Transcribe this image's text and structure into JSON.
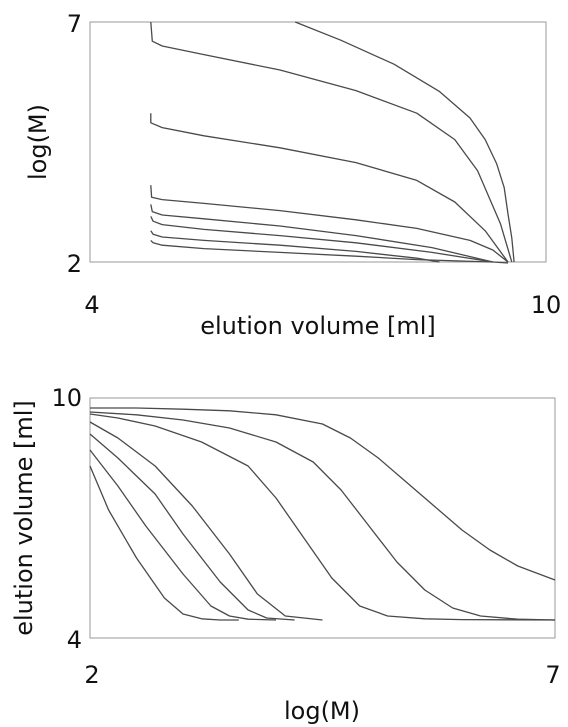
{
  "chart_data": [
    {
      "type": "line",
      "xlabel": "elution volume [ml]",
      "ylabel": "log(M)",
      "xlim": [
        4,
        10
      ],
      "ylim": [
        2,
        7
      ],
      "xticks": [
        "4",
        "10"
      ],
      "yticks": [
        "2",
        "7"
      ],
      "grid": false,
      "line_color": "#4a4a4a",
      "series": [
        {
          "x": [
            4.8,
            4.83,
            4.95,
            5.5,
            6.5,
            7.5,
            8.3,
            9.3,
            9.5
          ],
          "y": [
            2.45,
            2.4,
            2.35,
            2.28,
            2.2,
            2.12,
            2.05,
            2.0,
            1.98
          ]
        },
        {
          "x": [
            4.8,
            4.83,
            4.95,
            5.5,
            6.5,
            7.5,
            8.3,
            8.6
          ],
          "y": [
            2.65,
            2.58,
            2.52,
            2.45,
            2.35,
            2.22,
            2.08,
            2.0
          ]
        },
        {
          "x": [
            4.8,
            4.83,
            4.95,
            5.5,
            6.5,
            7.5,
            8.5,
            9.3
          ],
          "y": [
            2.95,
            2.85,
            2.78,
            2.68,
            2.55,
            2.4,
            2.2,
            2.0
          ]
        },
        {
          "x": [
            4.8,
            4.82,
            4.95,
            5.5,
            6.5,
            7.5,
            8.5,
            9.3
          ],
          "y": [
            3.2,
            3.05,
            2.98,
            2.9,
            2.75,
            2.55,
            2.3,
            2.0
          ]
        },
        {
          "x": [
            4.8,
            4.81,
            4.95,
            5.5,
            6.5,
            7.5,
            8.3,
            9.0,
            9.3,
            9.5
          ],
          "y": [
            3.6,
            3.35,
            3.3,
            3.22,
            3.07,
            2.88,
            2.7,
            2.45,
            2.25,
            2.0
          ]
        },
        {
          "x": [
            4.8,
            4.8,
            4.95,
            5.5,
            6.5,
            7.5,
            8.3,
            8.8,
            9.2,
            9.5
          ],
          "y": [
            5.1,
            4.9,
            4.8,
            4.63,
            4.38,
            4.07,
            3.7,
            3.25,
            2.65,
            2.0
          ]
        },
        {
          "x": [
            4.8,
            4.82,
            4.95,
            5.5,
            6.5,
            7.5,
            8.3,
            8.8,
            9.1,
            9.4,
            9.55
          ],
          "y": [
            7.0,
            6.6,
            6.5,
            6.32,
            6.0,
            5.57,
            5.1,
            4.55,
            3.9,
            2.8,
            2.0
          ]
        },
        {
          "x": [
            6.7,
            7.3,
            8.0,
            8.6,
            9.0,
            9.2,
            9.35,
            9.45,
            9.5,
            9.55,
            9.58
          ],
          "y": [
            7.0,
            6.62,
            6.12,
            5.55,
            5.0,
            4.55,
            4.05,
            3.55,
            3.0,
            2.5,
            2.0
          ]
        }
      ]
    },
    {
      "type": "line",
      "xlabel": "log(M)",
      "ylabel": "elution volume [ml]",
      "xlim": [
        2,
        7
      ],
      "ylim": [
        4,
        10
      ],
      "xticks": [
        "2",
        "7"
      ],
      "yticks": [
        "4",
        "10"
      ],
      "grid": false,
      "line_color": "#4a4a4a",
      "series": [
        {
          "x": [
            2.0,
            2.2,
            2.5,
            2.8,
            3.0,
            3.2,
            3.4,
            3.6
          ],
          "y": [
            8.3,
            7.2,
            6.0,
            5.0,
            4.6,
            4.48,
            4.45,
            4.45
          ]
        },
        {
          "x": [
            2.0,
            2.3,
            2.6,
            3.0,
            3.3,
            3.5,
            3.7,
            4.0
          ],
          "y": [
            8.7,
            7.8,
            6.8,
            5.6,
            4.8,
            4.55,
            4.47,
            4.45
          ]
        },
        {
          "x": [
            2.0,
            2.3,
            2.7,
            3.0,
            3.4,
            3.7,
            3.9,
            4.2
          ],
          "y": [
            9.1,
            8.5,
            7.6,
            6.6,
            5.4,
            4.7,
            4.5,
            4.45
          ]
        },
        {
          "x": [
            2.0,
            2.3,
            2.7,
            3.1,
            3.5,
            3.8,
            4.1,
            4.5
          ],
          "y": [
            9.4,
            9.0,
            8.3,
            7.3,
            6.1,
            5.1,
            4.55,
            4.45
          ]
        },
        {
          "x": [
            2.0,
            2.3,
            2.7,
            3.2,
            3.7,
            4.0,
            4.3,
            4.6,
            4.9,
            5.2,
            5.6,
            6.0,
            7.0
          ],
          "y": [
            9.6,
            9.5,
            9.3,
            8.9,
            8.3,
            7.5,
            6.5,
            5.5,
            4.8,
            4.55,
            4.48,
            4.46,
            4.45
          ]
        },
        {
          "x": [
            2.0,
            2.5,
            3.0,
            3.5,
            4.0,
            4.4,
            4.7,
            5.0,
            5.3,
            5.6,
            5.9,
            6.2,
            6.6,
            7.0
          ],
          "y": [
            9.65,
            9.58,
            9.45,
            9.25,
            8.9,
            8.4,
            7.7,
            6.8,
            5.9,
            5.2,
            4.75,
            4.55,
            4.47,
            4.45
          ]
        },
        {
          "x": [
            2.0,
            2.5,
            3.0,
            3.5,
            4.0,
            4.5,
            4.8,
            5.1,
            5.4,
            5.7,
            6.0,
            6.3,
            6.6,
            7.0
          ],
          "y": [
            9.75,
            9.75,
            9.72,
            9.68,
            9.58,
            9.35,
            9.0,
            8.5,
            7.9,
            7.3,
            6.7,
            6.2,
            5.8,
            5.45
          ]
        }
      ]
    }
  ]
}
